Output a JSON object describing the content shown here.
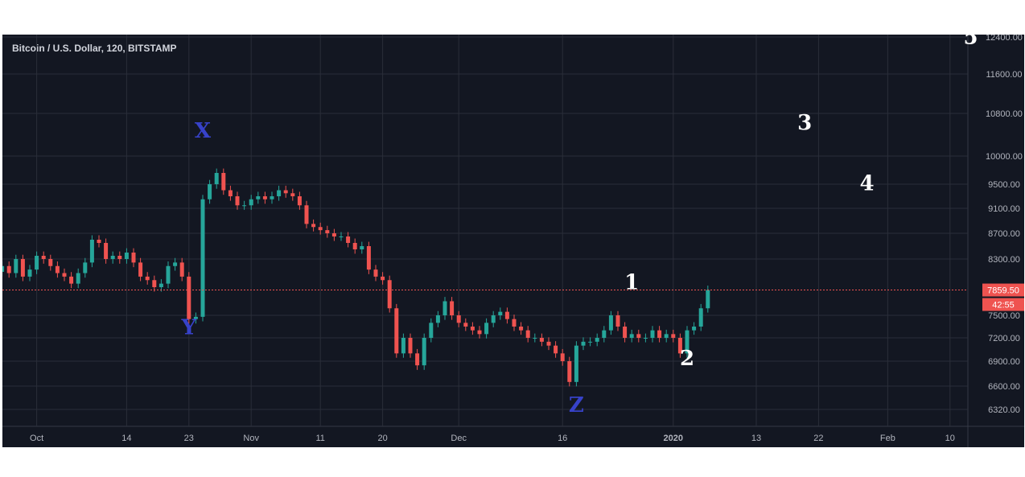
{
  "chart_data": {
    "type": "candlestick",
    "title": "Bitcoin / U.S. Dollar, 120, BITSTAMP",
    "xlabel": "",
    "ylabel": "",
    "grid": true,
    "y_axis": {
      "ticks": [
        "12400.00",
        "11600.00",
        "10800.00",
        "10000.00",
        "9500.00",
        "9100.00",
        "8700.00",
        "8300.00",
        "7500.00",
        "7200.00",
        "6900.00",
        "6600.00",
        "6320.00"
      ]
    },
    "x_axis": {
      "ticks": [
        "Oct",
        "14",
        "23",
        "Nov",
        "11",
        "20",
        "Dec",
        "16",
        "2020",
        "13",
        "22",
        "Feb",
        "10"
      ]
    },
    "last_price": {
      "value": 7859.5,
      "label": "7859.50",
      "countdown": "42:55",
      "color": "#ef5350"
    },
    "wave_labels": [
      {
        "text": "X",
        "price": 10350,
        "date": "2019-10-25",
        "color": "#3742c9"
      },
      {
        "text": "Y",
        "price": 7250,
        "date": "2019-10-23",
        "color": "#3742c9"
      },
      {
        "text": "Z",
        "price": 6290,
        "date": "2019-12-18",
        "color": "#3742c9"
      },
      {
        "text": "1",
        "price": 7870,
        "date": "2019-12-26",
        "color": "#ffffff"
      },
      {
        "text": "2",
        "price": 6850,
        "date": "2020-01-03",
        "color": "#ffffff"
      },
      {
        "text": "3",
        "price": 10500,
        "date": "2020-01-20",
        "color": "#ffffff"
      },
      {
        "text": "4",
        "price": 9400,
        "date": "2020-01-29",
        "color": "#ffffff"
      },
      {
        "text": "5",
        "price": 12250,
        "date": "2020-02-13",
        "color": "#ffffff"
      }
    ],
    "series": [
      {
        "x": [
          "2019-09-26",
          "2019-09-27",
          "2019-09-28",
          "2019-09-29",
          "2019-09-30",
          "2019-10-01",
          "2019-10-02",
          "2019-10-03",
          "2019-10-04",
          "2019-10-05",
          "2019-10-06",
          "2019-10-07",
          "2019-10-08",
          "2019-10-09",
          "2019-10-10",
          "2019-10-11",
          "2019-10-12",
          "2019-10-13",
          "2019-10-14",
          "2019-10-15",
          "2019-10-16",
          "2019-10-17",
          "2019-10-18",
          "2019-10-19",
          "2019-10-20",
          "2019-10-21",
          "2019-10-22",
          "2019-10-23",
          "2019-10-24",
          "2019-10-25",
          "2019-10-26",
          "2019-10-27",
          "2019-10-28",
          "2019-10-29",
          "2019-10-30",
          "2019-10-31",
          "2019-11-01",
          "2019-11-02",
          "2019-11-03",
          "2019-11-04",
          "2019-11-05",
          "2019-11-06",
          "2019-11-07",
          "2019-11-08",
          "2019-11-09",
          "2019-11-10",
          "2019-11-11",
          "2019-11-12",
          "2019-11-13",
          "2019-11-14",
          "2019-11-15",
          "2019-11-16",
          "2019-11-17",
          "2019-11-18",
          "2019-11-19",
          "2019-11-20",
          "2019-11-21",
          "2019-11-22",
          "2019-11-23",
          "2019-11-24",
          "2019-11-25",
          "2019-11-26",
          "2019-11-27",
          "2019-11-28",
          "2019-11-29",
          "2019-11-30",
          "2019-12-01",
          "2019-12-02",
          "2019-12-03",
          "2019-12-04",
          "2019-12-05",
          "2019-12-06",
          "2019-12-07",
          "2019-12-08",
          "2019-12-09",
          "2019-12-10",
          "2019-12-11",
          "2019-12-12",
          "2019-12-13",
          "2019-12-14",
          "2019-12-15",
          "2019-12-16",
          "2019-12-17",
          "2019-12-18",
          "2019-12-19",
          "2019-12-20",
          "2019-12-21",
          "2019-12-22",
          "2019-12-23",
          "2019-12-24",
          "2019-12-25",
          "2019-12-26",
          "2019-12-27",
          "2019-12-28",
          "2019-12-29",
          "2019-12-30",
          "2019-12-31",
          "2020-01-01",
          "2020-01-02",
          "2020-01-03",
          "2020-01-04",
          "2020-01-05",
          "2020-01-06"
        ],
        "close": [
          8200,
          8100,
          8300,
          8050,
          8150,
          8350,
          8300,
          8200,
          8100,
          8050,
          7950,
          8100,
          8250,
          8600,
          8550,
          8300,
          8350,
          8300,
          8400,
          8250,
          8050,
          8000,
          7900,
          7950,
          8200,
          8250,
          8050,
          7450,
          7480,
          9250,
          9500,
          9700,
          9400,
          9300,
          9150,
          9150,
          9250,
          9300,
          9250,
          9300,
          9400,
          9350,
          9300,
          9150,
          8850,
          8800,
          8750,
          8700,
          8650,
          8650,
          8550,
          8450,
          8500,
          8150,
          8050,
          8000,
          7600,
          7000,
          7200,
          7000,
          6850,
          7200,
          7400,
          7500,
          7700,
          7500,
          7400,
          7350,
          7300,
          7250,
          7400,
          7500,
          7550,
          7450,
          7350,
          7300,
          7200,
          7200,
          7150,
          7100,
          7000,
          6900,
          6650,
          7100,
          7150,
          7150,
          7200,
          7300,
          7500,
          7350,
          7200,
          7250,
          7200,
          7200,
          7300,
          7200,
          7250,
          7200,
          7000,
          7300,
          7350,
          7600,
          7859.5
        ]
      }
    ]
  }
}
